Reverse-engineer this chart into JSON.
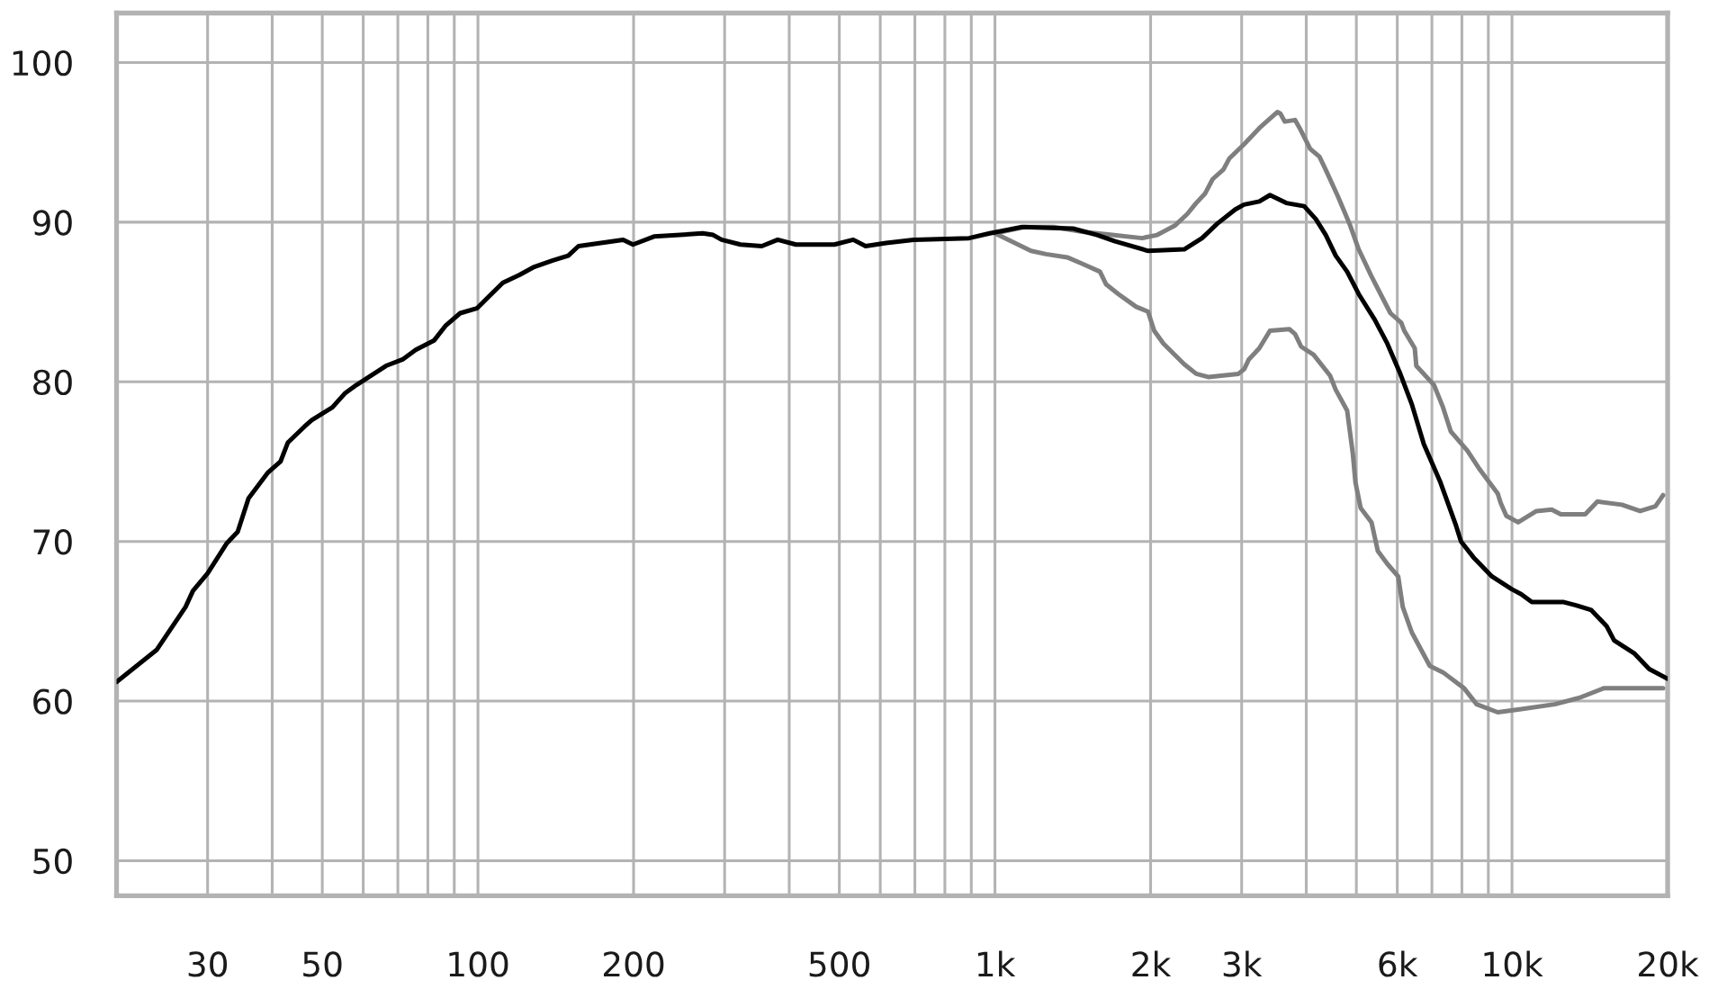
{
  "chart_data": {
    "type": "line",
    "log": "x",
    "xlim": [
      20,
      20000
    ],
    "ylim": [
      47.8,
      103.1
    ],
    "xticks": [
      {
        "value": 20,
        "label": null
      },
      30,
      {
        "value": 40,
        "label": null
      },
      50,
      {
        "value": 60,
        "label": null
      },
      {
        "value": 70,
        "label": null
      },
      {
        "value": 80,
        "label": null
      },
      {
        "value": 90,
        "label": null
      },
      100,
      200,
      {
        "value": 300,
        "label": null
      },
      {
        "value": 400,
        "label": null
      },
      500,
      {
        "value": 600,
        "label": null
      },
      {
        "value": 700,
        "label": null
      },
      {
        "value": 800,
        "label": null
      },
      {
        "value": 900,
        "label": null
      },
      {
        "value": 1000,
        "label": "1k"
      },
      {
        "value": 2000,
        "label": "2k"
      },
      {
        "value": 3000,
        "label": "3k"
      },
      {
        "value": 4000,
        "label": null
      },
      {
        "value": 5000,
        "label": null
      },
      {
        "value": 6000,
        "label": "6k"
      },
      {
        "value": 7000,
        "label": null
      },
      {
        "value": 8000,
        "label": null
      },
      {
        "value": 9000,
        "label": null
      },
      {
        "value": 10000,
        "label": "10k"
      },
      {
        "value": 20000,
        "label": "20k"
      }
    ],
    "yticks": [
      50,
      60,
      70,
      80,
      90,
      100
    ],
    "grid": true,
    "line_style": "solid",
    "marker": "none",
    "series": [
      {
        "color": "#7f7f7f",
        "x": [
          1000,
          1140,
          1300,
          1474,
          1685,
          1925,
          2060,
          2231,
          2353,
          2450,
          2550,
          2637,
          2766,
          2841,
          3036,
          3248,
          3519,
          3565,
          3635,
          3805,
          3883,
          4070,
          4242,
          4360,
          4608,
          4850,
          5052,
          5349,
          5819,
          6107,
          6189,
          6485,
          6530,
          7066,
          7355,
          7612,
          8194,
          8665,
          9385,
          9510,
          9752,
          10276,
          11149,
          11932,
          12428,
          13855,
          14632,
          16316,
          17694,
          18939,
          19600
        ],
        "values": [
          89.3,
          89.7,
          89.7,
          89.4,
          89.2,
          89.0,
          89.2,
          89.8,
          90.5,
          91.2,
          91.8,
          92.7,
          93.3,
          94.0,
          94.9,
          95.9,
          96.9,
          96.8,
          96.3,
          96.4,
          95.9,
          94.6,
          94.1,
          93.3,
          91.6,
          89.9,
          88.3,
          86.6,
          84.3,
          83.7,
          83.2,
          82.1,
          81.0,
          79.8,
          78.4,
          76.9,
          75.7,
          74.5,
          73.0,
          72.4,
          71.6,
          71.2,
          71.9,
          72.0,
          71.7,
          71.7,
          72.5,
          72.3,
          71.9,
          72.2,
          72.9
        ]
      },
      {
        "color": "#7f7f7f",
        "x": [
          1000,
          1174,
          1255,
          1379,
          1474,
          1596,
          1641,
          1732,
          1875,
          1977,
          2032,
          2117,
          2323,
          2451,
          2584,
          2957,
          3035,
          3097,
          3245,
          3403,
          3710,
          3805,
          3911,
          4132,
          4446,
          4561,
          4799,
          4922,
          4980,
          5097,
          5349,
          5501,
          5738,
          6025,
          6147,
          6400,
          6935,
          7355,
          8080,
          8544,
          9385,
          10416,
          12092,
          13487,
          15031,
          16760,
          19600
        ],
        "values": [
          89.3,
          88.2,
          88.0,
          87.8,
          87.4,
          86.9,
          86.1,
          85.5,
          84.7,
          84.4,
          83.2,
          82.4,
          81.1,
          80.5,
          80.3,
          80.5,
          80.8,
          81.4,
          82.1,
          83.2,
          83.3,
          83.0,
          82.2,
          81.7,
          80.4,
          79.5,
          78.2,
          75.5,
          73.7,
          72.1,
          71.2,
          69.4,
          68.6,
          67.8,
          65.9,
          64.3,
          62.2,
          61.8,
          60.8,
          59.8,
          59.3,
          59.5,
          59.8,
          60.2,
          60.8,
          60.8,
          60.8
        ]
      },
      {
        "color": "#000000",
        "x": [
          20,
          23.9,
          27.2,
          28.1,
          30,
          32.7,
          34.3,
          36.0,
          39.2,
          41.5,
          42.9,
          46.2,
          47.7,
          52.3,
          55.4,
          58.2,
          66.4,
          71.5,
          75.8,
          82.3,
          86.5,
          92.4,
          99.5,
          105.4,
          111.7,
          120.3,
          128.5,
          139.6,
          149.5,
          156.5,
          190.9,
          199.5,
          219,
          272,
          285,
          296,
          322,
          354,
          380,
          412,
          489,
          532,
          562,
          616,
          696,
          891,
          977,
          1128,
          1416,
          1576,
          1707,
          1978,
          2323,
          2515,
          2690,
          2916,
          3031,
          3245,
          3403,
          3660,
          3963,
          4173,
          4363,
          4561,
          4799,
          5052,
          5425,
          5738,
          6064,
          6400,
          6752,
          7271,
          7792,
          7970,
          8425,
          9151,
          10000,
          10416,
          10925,
          12597,
          13298,
          14235,
          15236,
          15758,
          17218,
          18430,
          20000
        ],
        "values": [
          61.2,
          63.2,
          65.9,
          66.9,
          68.0,
          69.9,
          70.6,
          72.7,
          74.3,
          75.0,
          76.2,
          77.2,
          77.6,
          78.4,
          79.3,
          79.8,
          81.0,
          81.4,
          82.0,
          82.6,
          83.5,
          84.3,
          84.6,
          85.4,
          86.2,
          86.7,
          87.2,
          87.6,
          87.9,
          88.5,
          88.9,
          88.6,
          89.1,
          89.3,
          89.2,
          88.9,
          88.6,
          88.5,
          88.9,
          88.6,
          88.6,
          88.9,
          88.5,
          88.7,
          88.9,
          89.0,
          89.3,
          89.7,
          89.6,
          89.2,
          88.8,
          88.2,
          88.3,
          89.0,
          89.9,
          90.8,
          91.1,
          91.3,
          91.7,
          91.2,
          91.0,
          90.2,
          89.2,
          87.9,
          86.9,
          85.5,
          83.9,
          82.4,
          80.6,
          78.6,
          76.1,
          73.7,
          71.0,
          70.0,
          69.0,
          67.8,
          67.0,
          66.7,
          66.2,
          66.2,
          66.0,
          65.7,
          64.7,
          63.8,
          63.0,
          62.0,
          61.4
        ]
      }
    ]
  }
}
